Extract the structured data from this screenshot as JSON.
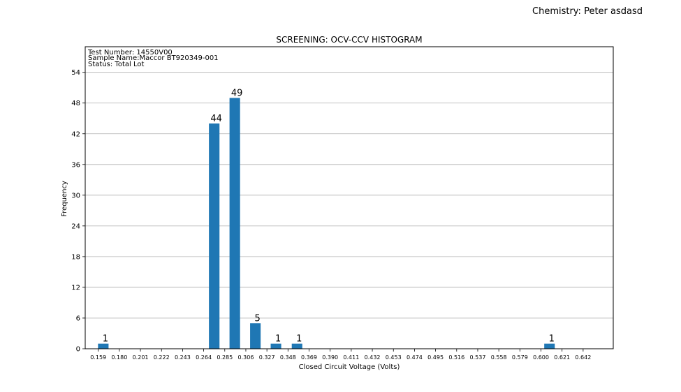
{
  "corner_label": "Chemistry: Peter asdasd",
  "chart_data": {
    "type": "bar",
    "title": "SCREENING: OCV-CCV HISTOGRAM",
    "xlabel": "Closed Circuit Voltage (Volts)",
    "ylabel": "Frequency",
    "info_lines": [
      "Test Number: 14550V00",
      "Sample Name:Maccor BT920349-001",
      "Status: Total Lot"
    ],
    "x_ticks": [
      "0.159",
      "0.180",
      "0.201",
      "0.222",
      "0.243",
      "0.264",
      "0.285",
      "0.306",
      "0.327",
      "0.348",
      "0.369",
      "0.390",
      "0.411",
      "0.432",
      "0.453",
      "0.474",
      "0.495",
      "0.516",
      "0.537",
      "0.558",
      "0.579",
      "0.600",
      "0.621",
      "0.642"
    ],
    "y_ticks": [
      0,
      6,
      12,
      18,
      24,
      30,
      36,
      42,
      48,
      54
    ],
    "ylim": [
      0,
      59
    ],
    "xlim": [
      0.146,
      0.672
    ],
    "bin_width": 0.0105,
    "grid": "horizontal",
    "bar_color": "#1f77b4",
    "bars": [
      {
        "x": 0.164,
        "value": 1,
        "label": "1"
      },
      {
        "x": 0.2745,
        "value": 44,
        "label": "44"
      },
      {
        "x": 0.295,
        "value": 49,
        "label": "49"
      },
      {
        "x": 0.3155,
        "value": 5,
        "label": "5"
      },
      {
        "x": 0.336,
        "value": 1,
        "label": "1"
      },
      {
        "x": 0.357,
        "value": 1,
        "label": "1"
      },
      {
        "x": 0.6085,
        "value": 1,
        "label": "1"
      }
    ]
  }
}
